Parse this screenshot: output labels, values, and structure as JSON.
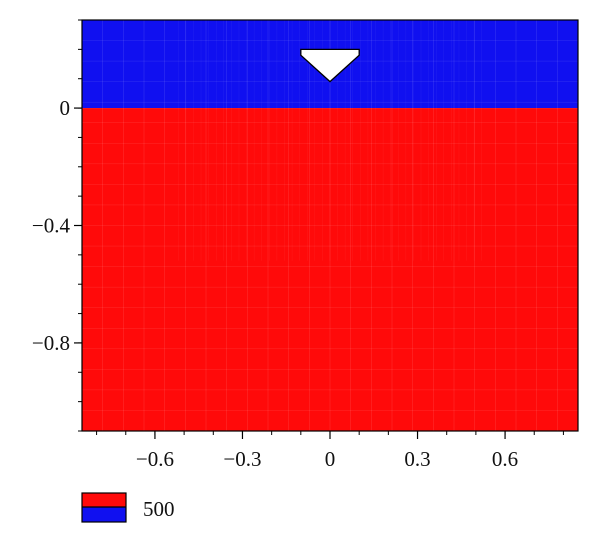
{
  "colors": {
    "upper_layer": "#1010f0",
    "lower_layer": "#ff0a0a",
    "indenter": "#ffffff",
    "axis": "#000000",
    "mesh_line": "#ffffff"
  },
  "chart_data": {
    "type": "diagram",
    "xlim": [
      -0.85,
      0.85
    ],
    "ylim": [
      -1.1,
      0.3
    ],
    "x_ticks": [
      {
        "value": -0.6,
        "label": "−0.6"
      },
      {
        "value": -0.3,
        "label": "−0.3"
      },
      {
        "value": 0,
        "label": "0"
      },
      {
        "value": 0.3,
        "label": "0.3"
      },
      {
        "value": 0.6,
        "label": "0.6"
      }
    ],
    "y_ticks": [
      {
        "value": 0,
        "label": "0"
      },
      {
        "value": -0.4,
        "label": "−0.4"
      },
      {
        "value": -0.8,
        "label": "−0.8"
      }
    ],
    "regions": [
      {
        "role": "upper_layer",
        "y_from": 0,
        "y_to": 0.3
      },
      {
        "role": "lower_layer",
        "y_from": -1.1,
        "y_to": 0
      }
    ],
    "indenter": {
      "vertices": [
        [
          -0.1,
          0.2
        ],
        [
          0.1,
          0.2
        ],
        [
          0.1,
          0.18
        ],
        [
          0,
          0.09
        ],
        [
          -0.1,
          0.18
        ]
      ]
    },
    "legend": {
      "entries": [
        {
          "colors": [
            "lower_layer",
            "upper_layer"
          ],
          "label": "500"
        }
      ]
    }
  }
}
